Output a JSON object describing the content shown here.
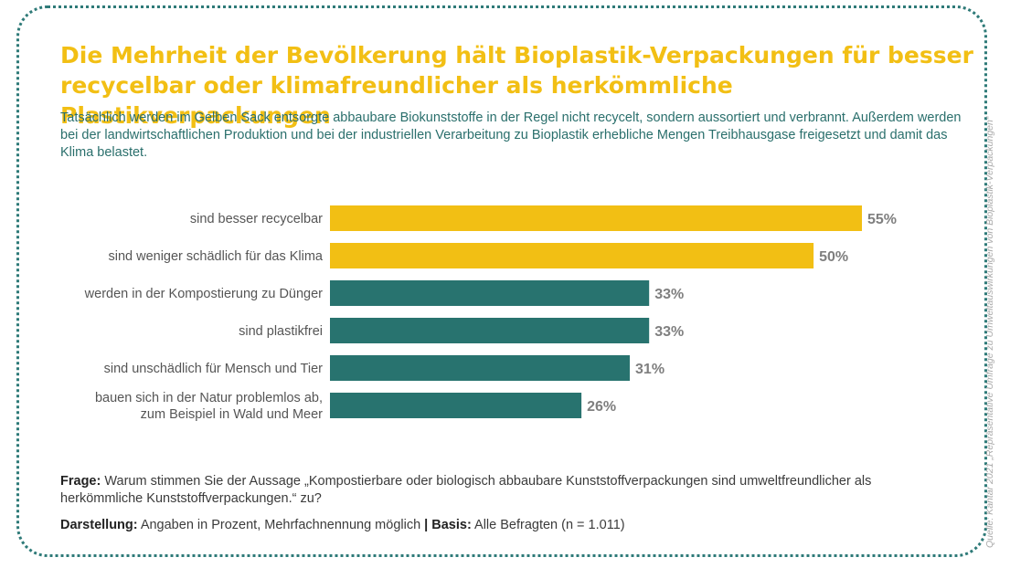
{
  "title": "Die Mehrheit der Bevölkerung hält Bioplastik-Verpackungen für besser recycelbar oder klimafreundlicher als herkömmliche Plastikverpackungen",
  "subtitle": "Tatsächlich werden im Gelben Sack entsorgte abbaubare Biokunststoffe in der Regel nicht recycelt, sondern aussortiert und verbrannt. Außerdem werden bei der landwirtschaftlichen Produktion und bei der industriellen Verarbeitung zu Bioplastik erhebliche Mengen Treibhausgase freigesetzt und damit das Klima belastet.",
  "chart_data": {
    "type": "bar",
    "orientation": "horizontal",
    "categories": [
      [
        "sind besser recycelbar"
      ],
      [
        "sind weniger schädlich für das Klima"
      ],
      [
        "werden in der Kompostierung zu Dünger"
      ],
      [
        "sind plastikfrei"
      ],
      [
        "sind unschädlich für Mensch und Tier"
      ],
      [
        "bauen sich in der Natur problemlos ab,",
        "zum Beispiel in Wald und Meer"
      ]
    ],
    "values": [
      55,
      50,
      33,
      33,
      31,
      26
    ],
    "value_labels": [
      "55%",
      "50%",
      "33%",
      "33%",
      "31%",
      "26%"
    ],
    "bar_colors": [
      "#f2bf14",
      "#f2bf14",
      "#28736f",
      "#28736f",
      "#28736f",
      "#28736f"
    ],
    "xlim": [
      0,
      55
    ],
    "grid": false
  },
  "footer": {
    "question_label": "Frage:",
    "question_text": " Warum stimmen Sie der Aussage „Kompostierbare oder biologisch abbaubare Kunststoffverpackungen sind umweltfreundlicher als herkömmliche Kunststoffverpackungen.“ zu?",
    "display_label": "Darstellung:",
    "display_text": " Angaben in Prozent, Mehrfachnennung möglich ",
    "separator": "|",
    "basis_label": " Basis:",
    "basis_text": " Alle Befragten (n = 1.011)"
  },
  "source": "Quelle: Kantar 2021 „Repräsentative Umfrage zu Umweltauswirkungen von Bioplastik-Verpackungen“",
  "colors": {
    "title": "#f2bf14",
    "accent": "#28736f",
    "frame": "#2e7a78"
  }
}
